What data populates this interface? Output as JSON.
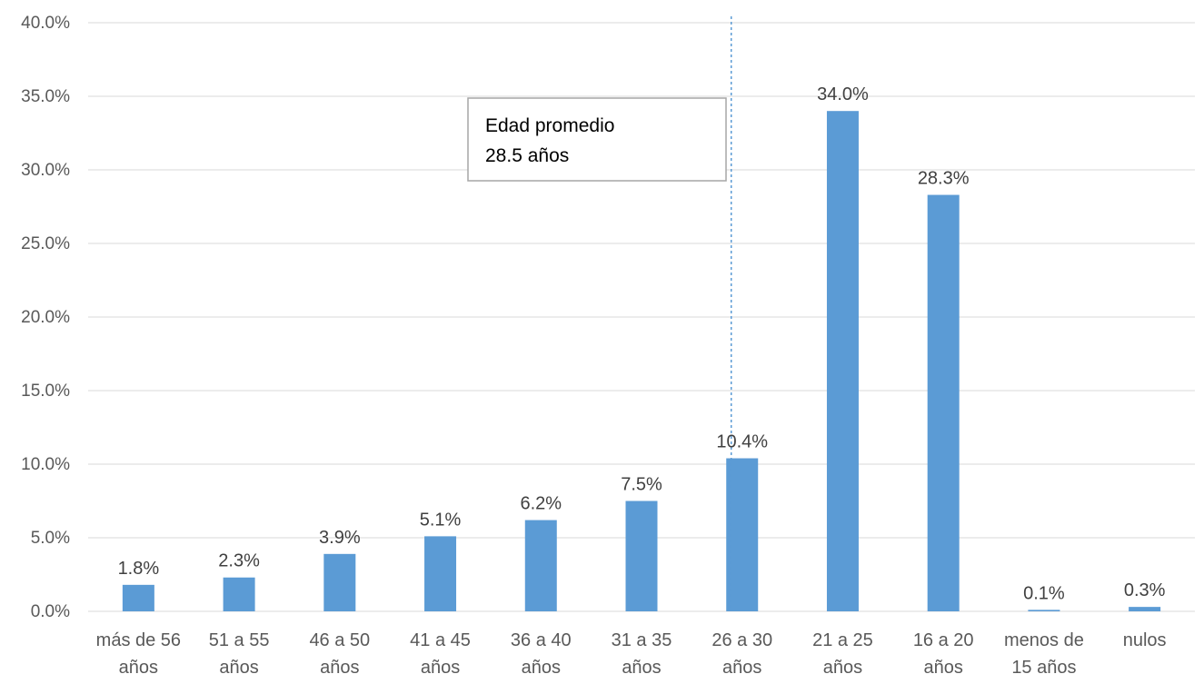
{
  "chart_data": {
    "type": "bar",
    "categories": [
      [
        "más de 56",
        "años"
      ],
      [
        "51 a 55",
        "años"
      ],
      [
        "46 a 50",
        "años"
      ],
      [
        "41 a 45",
        "años"
      ],
      [
        "36 a 40",
        "años"
      ],
      [
        "31 a 35",
        "años"
      ],
      [
        "26 a 30",
        "años"
      ],
      [
        "21 a 25",
        "años"
      ],
      [
        "16 a 20",
        "años"
      ],
      [
        "menos de",
        "15 años"
      ],
      [
        "nulos"
      ]
    ],
    "values": [
      1.8,
      2.3,
      3.9,
      5.1,
      6.2,
      7.5,
      10.4,
      34.0,
      28.3,
      0.1,
      0.3
    ],
    "data_labels": [
      "1.8%",
      "2.3%",
      "3.9%",
      "5.1%",
      "6.2%",
      "7.5%",
      "10.4%",
      "34.0%",
      "28.3%",
      "0.1%",
      "0.3%"
    ],
    "yticks": [
      0,
      5,
      10,
      15,
      20,
      25,
      30,
      35,
      40
    ],
    "ytick_labels": [
      "0.0%",
      "5.0%",
      "10.0%",
      "15.0%",
      "20.0%",
      "25.0%",
      "30.0%",
      "35.0%",
      "40.0%"
    ],
    "ylim": [
      0,
      40
    ],
    "grid": true,
    "bar_color": "#5B9BD5",
    "grid_color": "#D9D9D9",
    "reference_line": {
      "category_index": 6,
      "color": "#5B9BD5",
      "style": "dashed"
    },
    "annotation": {
      "lines": [
        "Edad promedio",
        "28.5 años"
      ]
    }
  }
}
